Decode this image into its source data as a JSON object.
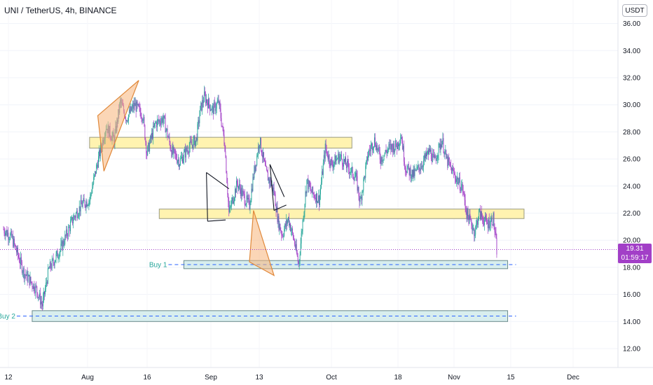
{
  "header": {
    "title": "UNI / TetherUS, 4h, BINANCE",
    "currency": "USDT"
  },
  "price_badge": {
    "price": "19.31",
    "countdown": "01:59:17"
  },
  "colors": {
    "up": "#26a69a",
    "down": "#a23fc7",
    "resistance_fill": "#fff3b0",
    "support_fill": "#d8eeee",
    "pattern_fill": "#f7b57a",
    "price_line": "#a23fc7"
  },
  "chart_data": {
    "type": "candlestick",
    "symbol": "UNI / TetherUS",
    "interval": "4h",
    "exchange": "BINANCE",
    "y_axis": {
      "min": 10.8,
      "max": 37,
      "ticks": [
        12,
        14,
        16,
        18,
        20,
        22,
        24,
        26,
        28,
        30,
        32,
        34,
        36
      ],
      "tick_labels": [
        "12.00",
        "14.00",
        "16.00",
        "18.00",
        "20.00",
        "22.00",
        "24.00",
        "26.00",
        "28.00",
        "30.00",
        "32.00",
        "34.00",
        "36.00"
      ]
    },
    "x_axis": {
      "tick_labels": [
        "12",
        "Aug",
        "16",
        "Sep",
        "13",
        "Oct",
        "18",
        "Nov",
        "15",
        "Dec"
      ]
    },
    "last_price": 19.31,
    "price_path": [
      {
        "d": 0,
        "p": 20.8
      },
      {
        "d": 2,
        "p": 20.2
      },
      {
        "d": 5,
        "p": 17.6
      },
      {
        "d": 8,
        "p": 16.4
      },
      {
        "d": 9.5,
        "p": 15.2
      },
      {
        "d": 11,
        "p": 17.8
      },
      {
        "d": 14,
        "p": 19.4
      },
      {
        "d": 17,
        "p": 21.6
      },
      {
        "d": 19,
        "p": 22.6
      },
      {
        "d": 21,
        "p": 23.0
      },
      {
        "d": 23,
        "p": 25.8
      },
      {
        "d": 25,
        "p": 28.4
      },
      {
        "d": 27,
        "p": 27.4
      },
      {
        "d": 28.5,
        "p": 30.2
      },
      {
        "d": 30,
        "p": 29.0
      },
      {
        "d": 32,
        "p": 30.0
      },
      {
        "d": 34,
        "p": 29.2
      },
      {
        "d": 35,
        "p": 26.4
      },
      {
        "d": 37,
        "p": 28.6
      },
      {
        "d": 39,
        "p": 29.0
      },
      {
        "d": 41,
        "p": 26.6
      },
      {
        "d": 43,
        "p": 25.8
      },
      {
        "d": 45,
        "p": 26.8
      },
      {
        "d": 47,
        "p": 27.4
      },
      {
        "d": 48,
        "p": 29.6
      },
      {
        "d": 49,
        "p": 30.6
      },
      {
        "d": 51,
        "p": 29.6
      },
      {
        "d": 52.5,
        "p": 30.2
      },
      {
        "d": 54,
        "p": 27.0
      },
      {
        "d": 55,
        "p": 22.0
      },
      {
        "d": 57,
        "p": 24.2
      },
      {
        "d": 59,
        "p": 23.0
      },
      {
        "d": 60,
        "p": 22.6
      },
      {
        "d": 61,
        "p": 24.8
      },
      {
        "d": 62.5,
        "p": 27.4
      },
      {
        "d": 64,
        "p": 25.0
      },
      {
        "d": 66,
        "p": 23.6
      },
      {
        "d": 67,
        "p": 21.4
      },
      {
        "d": 68,
        "p": 20.4
      },
      {
        "d": 69.5,
        "p": 21.6
      },
      {
        "d": 71,
        "p": 19.8
      },
      {
        "d": 72,
        "p": 18.2
      },
      {
        "d": 73,
        "p": 21.4
      },
      {
        "d": 74,
        "p": 24.4
      },
      {
        "d": 75,
        "p": 23.6
      },
      {
        "d": 77,
        "p": 23.0
      },
      {
        "d": 78.5,
        "p": 26.8
      },
      {
        "d": 80,
        "p": 25.6
      },
      {
        "d": 82,
        "p": 26.2
      },
      {
        "d": 84,
        "p": 25.4
      },
      {
        "d": 86,
        "p": 24.6
      },
      {
        "d": 87,
        "p": 22.8
      },
      {
        "d": 89,
        "p": 26.4
      },
      {
        "d": 90.5,
        "p": 27.4
      },
      {
        "d": 92,
        "p": 26.0
      },
      {
        "d": 94,
        "p": 26.8
      },
      {
        "d": 96,
        "p": 27.0
      },
      {
        "d": 97,
        "p": 27.8
      },
      {
        "d": 98,
        "p": 25.4
      },
      {
        "d": 100,
        "p": 24.8
      },
      {
        "d": 102,
        "p": 25.6
      },
      {
        "d": 104,
        "p": 26.6
      },
      {
        "d": 105,
        "p": 25.8
      },
      {
        "d": 107,
        "p": 27.4
      },
      {
        "d": 108,
        "p": 26.0
      },
      {
        "d": 110,
        "p": 24.8
      },
      {
        "d": 112,
        "p": 23.8
      },
      {
        "d": 113,
        "p": 22.0
      },
      {
        "d": 115,
        "p": 20.6
      },
      {
        "d": 116,
        "p": 22.0
      },
      {
        "d": 118,
        "p": 21.2
      },
      {
        "d": 119.5,
        "p": 21.6
      },
      {
        "d": 120.5,
        "p": 18.8
      }
    ],
    "zones": [
      {
        "type": "resistance",
        "p_low": 26.8,
        "p_high": 27.6,
        "d_start": 21,
        "d_end": 85
      },
      {
        "type": "resistance",
        "p_low": 21.6,
        "p_high": 22.3,
        "d_start": 38,
        "d_end": 127
      },
      {
        "type": "support",
        "label": "Buy 1",
        "p_low": 17.9,
        "p_high": 18.5,
        "d_start": 44,
        "d_end": 123
      },
      {
        "type": "support",
        "label": "Buy 2",
        "p_low": 14.0,
        "p_high": 14.8,
        "d_start": 7,
        "d_end": 123
      }
    ],
    "patterns": [
      {
        "shape": "triangle",
        "filled": true,
        "points": [
          [
            23,
            29.2
          ],
          [
            33,
            31.8
          ],
          [
            24.5,
            25.1
          ]
        ]
      },
      {
        "shape": "triangle",
        "filled": false,
        "points": [
          [
            49.5,
            25.0
          ],
          [
            55,
            23.8
          ],
          [
            49.8,
            21.4
          ],
          [
            54.2,
            21.5
          ]
        ]
      },
      {
        "shape": "triangle",
        "filled": true,
        "points": [
          [
            61,
            22.2
          ],
          [
            66,
            17.4
          ],
          [
            60,
            18.4
          ]
        ]
      },
      {
        "shape": "triangle",
        "filled": false,
        "points": [
          [
            65,
            25.6
          ],
          [
            68.5,
            23.2
          ],
          [
            66,
            22.2
          ],
          [
            69,
            22.6
          ]
        ]
      }
    ]
  }
}
